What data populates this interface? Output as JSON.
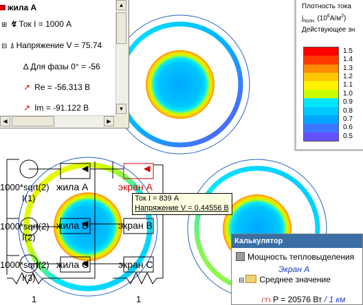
{
  "tree": {
    "title": "жила А",
    "current": "Ток I = 1000 А",
    "voltage": "Напряжение V = 75.74",
    "phase": "Для фазы 0° = -56",
    "re": "Re = -56.313 В",
    "im": "Im = -91.122 В"
  },
  "legend": {
    "title": "Плотность тока",
    "unit_prefix": "j",
    "unit_sub": "полн.",
    "unit_paren_open": "(10",
    "unit_exp": "6",
    "unit_rest": "А/м",
    "unit_exp2": "2",
    "unit_close": ")",
    "mode": "Действующее зн",
    "labels": [
      "1.5",
      "1.4",
      "1.3",
      "1.2",
      "1.1",
      "1.0",
      "0.9",
      "0.8",
      "0.7",
      "0.6",
      "0.5"
    ],
    "colors": [
      "#ff0000",
      "#ff3a00",
      "#ff8c00",
      "#ffc800",
      "#fff200",
      "#c8ff00",
      "#00e6ff",
      "#00c8ff",
      "#00a6ff",
      "#3c78ff",
      "#6450ff"
    ]
  },
  "circuit": {
    "source_label": "1000*sqrt(2)",
    "phase_labels": [
      "I(1)",
      "I(2)",
      "I(3)"
    ],
    "core_labels": [
      "жила А",
      "жила В",
      "жила С"
    ],
    "screen_labels": [
      "экран А",
      "экран В",
      "экран С"
    ],
    "resistor_labels": [
      "1",
      "1"
    ]
  },
  "tooltip": {
    "current": "Ток I = 839 А",
    "voltage": "Напряжение V = 0.44556 В"
  },
  "calculator": {
    "title": "Калькулятор",
    "item": "Мощность тепловыделения",
    "subject": "Экран А",
    "folder": "Среднее значение",
    "power": "P = 20576 Вт",
    "per": "/ 1 км"
  }
}
